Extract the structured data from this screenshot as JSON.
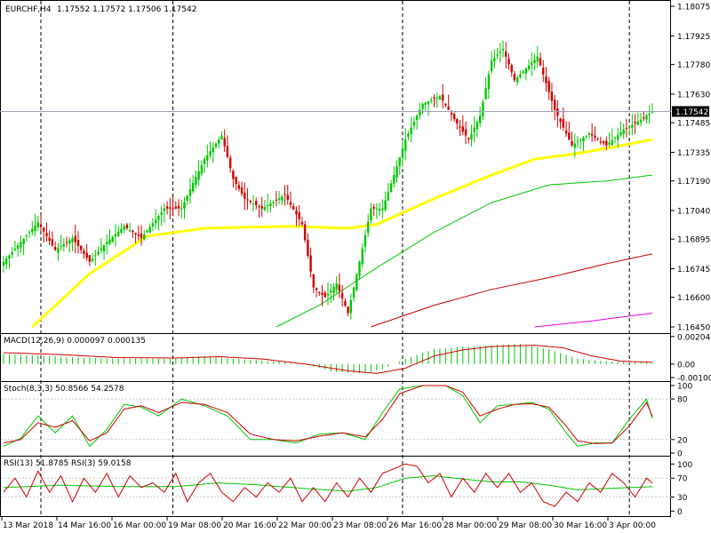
{
  "chart_data": {
    "type": "candlestick",
    "header": {
      "symbol": "EURCHF,H4",
      "ohlc": "1.17552 1.17572 1.17506 1.17542"
    },
    "current_price": 1.17542,
    "current_price_label": "1.17542",
    "price_axis": {
      "ylim": [
        1.1645,
        1.1808
      ],
      "ticks": [
        "1.18075",
        "1.17925",
        "1.17780",
        "1.17630",
        "1.17485",
        "1.17335",
        "1.17190",
        "1.17040",
        "1.16895",
        "1.16745",
        "1.16600",
        "1.16450"
      ]
    },
    "time_axis": {
      "labels": [
        "13 Mar 2018",
        "14 Mar 16:00",
        "16 Mar 00:00",
        "19 Mar 08:00",
        "20 Mar 16:00",
        "22 Mar 00:00",
        "23 Mar 08:00",
        "26 Mar 16:00",
        "28 Mar 00:00",
        "29 Mar 08:00",
        "30 Mar 16:00",
        "3 Apr 00:00"
      ],
      "period_separators": [
        13,
        59,
        139,
        218
      ]
    },
    "colors": {
      "bull": "#00c800",
      "bear": "#d00000",
      "sma_yellow": "#ffff00",
      "sma_green": "#00c800",
      "sma_red": "#cc0000",
      "sma_magenta": "#e000e0",
      "macd_signal": "#cc0000",
      "stoch_main": "#00c800",
      "stoch_signal": "#cc0000",
      "rsi_main": "#cc0000",
      "rsi_signal": "#00c800"
    },
    "candles": {
      "count": 227,
      "anchors": [
        [
          0,
          1.1678
        ],
        [
          6,
          1.1688
        ],
        [
          12,
          1.1698
        ],
        [
          18,
          1.1684
        ],
        [
          24,
          1.169
        ],
        [
          30,
          1.1678
        ],
        [
          36,
          1.1688
        ],
        [
          42,
          1.1696
        ],
        [
          48,
          1.169
        ],
        [
          56,
          1.1705
        ],
        [
          62,
          1.1705
        ],
        [
          66,
          1.1718
        ],
        [
          70,
          1.173
        ],
        [
          76,
          1.1742
        ],
        [
          80,
          1.172
        ],
        [
          84,
          1.171
        ],
        [
          90,
          1.1705
        ],
        [
          98,
          1.1712
        ],
        [
          104,
          1.1697
        ],
        [
          108,
          1.1665
        ],
        [
          112,
          1.166
        ],
        [
          116,
          1.1667
        ],
        [
          120,
          1.1652
        ],
        [
          124,
          1.1678
        ],
        [
          128,
          1.1705
        ],
        [
          132,
          1.1705
        ],
        [
          136,
          1.1722
        ],
        [
          140,
          1.174
        ],
        [
          146,
          1.1758
        ],
        [
          152,
          1.1762
        ],
        [
          158,
          1.1748
        ],
        [
          162,
          1.174
        ],
        [
          166,
          1.1752
        ],
        [
          170,
          1.178
        ],
        [
          174,
          1.1786
        ],
        [
          178,
          1.177
        ],
        [
          186,
          1.1782
        ],
        [
          192,
          1.1755
        ],
        [
          198,
          1.1737
        ],
        [
          204,
          1.1743
        ],
        [
          210,
          1.1737
        ],
        [
          216,
          1.1745
        ],
        [
          222,
          1.175
        ],
        [
          226,
          1.17542
        ]
      ]
    },
    "sma_lines": [
      {
        "color": "sma_yellow",
        "points": [
          [
            10,
            1.1645
          ],
          [
            30,
            1.1672
          ],
          [
            50,
            1.1691
          ],
          [
            70,
            1.1695
          ],
          [
            100,
            1.1696
          ],
          [
            120,
            1.1695
          ],
          [
            130,
            1.1697
          ],
          [
            150,
            1.171
          ],
          [
            170,
            1.1722
          ],
          [
            185,
            1.173
          ],
          [
            200,
            1.1733
          ],
          [
            212,
            1.1736
          ],
          [
            226,
            1.174
          ]
        ]
      },
      {
        "color": "sma_green",
        "points": [
          [
            95,
            1.1645
          ],
          [
            110,
            1.1656
          ],
          [
            130,
            1.1675
          ],
          [
            150,
            1.1693
          ],
          [
            170,
            1.1708
          ],
          [
            190,
            1.1717
          ],
          [
            210,
            1.1719
          ],
          [
            226,
            1.1722
          ]
        ]
      },
      {
        "color": "sma_red",
        "points": [
          [
            128,
            1.1645
          ],
          [
            150,
            1.1656
          ],
          [
            170,
            1.1664
          ],
          [
            190,
            1.167
          ],
          [
            210,
            1.1677
          ],
          [
            226,
            1.1682
          ]
        ]
      },
      {
        "color": "sma_magenta",
        "points": [
          [
            185,
            1.1645
          ],
          [
            205,
            1.1648
          ],
          [
            226,
            1.1652
          ]
        ]
      }
    ],
    "macd": {
      "label": "MACD(12,26,9) 0.000097 0.000135",
      "ylim": [
        -0.0012,
        0.0021
      ],
      "ticks": [
        "0.002046",
        "0.00",
        "-0.001007"
      ],
      "histogram_anchors": [
        [
          0,
          0.00075
        ],
        [
          20,
          0.00055
        ],
        [
          40,
          0.0004
        ],
        [
          60,
          0.0004
        ],
        [
          70,
          0.0006
        ],
        [
          80,
          0.0004
        ],
        [
          95,
          0.0002
        ],
        [
          105,
          0.0
        ],
        [
          115,
          -0.0006
        ],
        [
          125,
          -0.0007
        ],
        [
          132,
          -0.0004
        ],
        [
          140,
          0.0004
        ],
        [
          150,
          0.0011
        ],
        [
          160,
          0.0013
        ],
        [
          170,
          0.0014
        ],
        [
          180,
          0.0015
        ],
        [
          190,
          0.0011
        ],
        [
          200,
          0.0004
        ],
        [
          210,
          0.0002
        ],
        [
          226,
          9.7e-05
        ]
      ],
      "signal_anchors": [
        [
          0,
          0.00085
        ],
        [
          20,
          0.0007
        ],
        [
          40,
          0.00048
        ],
        [
          60,
          0.00045
        ],
        [
          75,
          0.00055
        ],
        [
          90,
          0.00038
        ],
        [
          105,
          0.0
        ],
        [
          120,
          -0.0005
        ],
        [
          130,
          -0.0007
        ],
        [
          140,
          -0.0003
        ],
        [
          150,
          0.0006
        ],
        [
          160,
          0.00105
        ],
        [
          170,
          0.0013
        ],
        [
          185,
          0.0014
        ],
        [
          195,
          0.0012
        ],
        [
          205,
          0.0006
        ],
        [
          215,
          0.00022
        ],
        [
          226,
          0.000135
        ]
      ]
    },
    "stoch": {
      "label": "Stoch(8,3,3) 50.8566 54.2578",
      "ylim": [
        0,
        100
      ],
      "ticks": [
        "100",
        "80",
        "20",
        "0"
      ],
      "main_anchors": [
        [
          0,
          10
        ],
        [
          6,
          22
        ],
        [
          12,
          55
        ],
        [
          18,
          30
        ],
        [
          24,
          55
        ],
        [
          30,
          10
        ],
        [
          36,
          35
        ],
        [
          42,
          72
        ],
        [
          48,
          68
        ],
        [
          54,
          55
        ],
        [
          62,
          80
        ],
        [
          70,
          70
        ],
        [
          78,
          55
        ],
        [
          86,
          20
        ],
        [
          94,
          20
        ],
        [
          102,
          15
        ],
        [
          110,
          28
        ],
        [
          118,
          30
        ],
        [
          126,
          20
        ],
        [
          132,
          60
        ],
        [
          138,
          95
        ],
        [
          146,
          100
        ],
        [
          154,
          100
        ],
        [
          160,
          85
        ],
        [
          166,
          45
        ],
        [
          172,
          70
        ],
        [
          178,
          72
        ],
        [
          184,
          75
        ],
        [
          190,
          65
        ],
        [
          196,
          30
        ],
        [
          200,
          10
        ],
        [
          206,
          15
        ],
        [
          212,
          15
        ],
        [
          218,
          50
        ],
        [
          224,
          80
        ],
        [
          226,
          50.8566
        ]
      ],
      "signal_anchors": [
        [
          0,
          15
        ],
        [
          6,
          20
        ],
        [
          12,
          45
        ],
        [
          18,
          38
        ],
        [
          24,
          48
        ],
        [
          30,
          18
        ],
        [
          36,
          30
        ],
        [
          42,
          65
        ],
        [
          48,
          70
        ],
        [
          54,
          60
        ],
        [
          62,
          75
        ],
        [
          70,
          72
        ],
        [
          78,
          60
        ],
        [
          86,
          28
        ],
        [
          94,
          20
        ],
        [
          102,
          18
        ],
        [
          110,
          25
        ],
        [
          118,
          30
        ],
        [
          126,
          24
        ],
        [
          132,
          50
        ],
        [
          138,
          88
        ],
        [
          146,
          100
        ],
        [
          154,
          100
        ],
        [
          160,
          90
        ],
        [
          166,
          55
        ],
        [
          172,
          65
        ],
        [
          178,
          72
        ],
        [
          184,
          73
        ],
        [
          190,
          68
        ],
        [
          196,
          40
        ],
        [
          200,
          18
        ],
        [
          206,
          14
        ],
        [
          212,
          15
        ],
        [
          218,
          40
        ],
        [
          224,
          75
        ],
        [
          226,
          54.2578
        ]
      ]
    },
    "rsi": {
      "label": "RSI(13) 51.8785  RSI(3) 59.0158",
      "ylim": [
        -5,
        110
      ],
      "ticks": [
        "100",
        "70",
        "30",
        "0"
      ],
      "rsi13_anchors": [
        [
          0,
          50
        ],
        [
          20,
          55
        ],
        [
          40,
          52
        ],
        [
          60,
          52
        ],
        [
          75,
          60
        ],
        [
          90,
          55
        ],
        [
          105,
          48
        ],
        [
          120,
          42
        ],
        [
          130,
          50
        ],
        [
          140,
          70
        ],
        [
          150,
          75
        ],
        [
          160,
          68
        ],
        [
          170,
          62
        ],
        [
          180,
          62
        ],
        [
          190,
          55
        ],
        [
          200,
          45
        ],
        [
          210,
          48
        ],
        [
          226,
          51.8785
        ]
      ],
      "rsi3_anchors": [
        [
          0,
          40
        ],
        [
          4,
          70
        ],
        [
          8,
          30
        ],
        [
          12,
          85
        ],
        [
          16,
          40
        ],
        [
          20,
          75
        ],
        [
          24,
          20
        ],
        [
          28,
          70
        ],
        [
          32,
          40
        ],
        [
          36,
          80
        ],
        [
          40,
          30
        ],
        [
          44,
          75
        ],
        [
          48,
          50
        ],
        [
          52,
          60
        ],
        [
          56,
          40
        ],
        [
          60,
          80
        ],
        [
          64,
          20
        ],
        [
          68,
          60
        ],
        [
          72,
          80
        ],
        [
          76,
          40
        ],
        [
          80,
          20
        ],
        [
          84,
          50
        ],
        [
          88,
          30
        ],
        [
          92,
          60
        ],
        [
          96,
          40
        ],
        [
          100,
          70
        ],
        [
          104,
          20
        ],
        [
          108,
          50
        ],
        [
          112,
          20
        ],
        [
          116,
          60
        ],
        [
          120,
          30
        ],
        [
          124,
          70
        ],
        [
          128,
          40
        ],
        [
          132,
          80
        ],
        [
          136,
          90
        ],
        [
          140,
          100
        ],
        [
          144,
          95
        ],
        [
          148,
          60
        ],
        [
          152,
          80
        ],
        [
          156,
          30
        ],
        [
          160,
          70
        ],
        [
          164,
          40
        ],
        [
          168,
          80
        ],
        [
          172,
          50
        ],
        [
          176,
          80
        ],
        [
          180,
          40
        ],
        [
          184,
          60
        ],
        [
          188,
          20
        ],
        [
          192,
          10
        ],
        [
          196,
          40
        ],
        [
          200,
          20
        ],
        [
          204,
          60
        ],
        [
          208,
          40
        ],
        [
          212,
          80
        ],
        [
          216,
          60
        ],
        [
          220,
          30
        ],
        [
          224,
          70
        ],
        [
          226,
          59.0158
        ]
      ]
    }
  }
}
